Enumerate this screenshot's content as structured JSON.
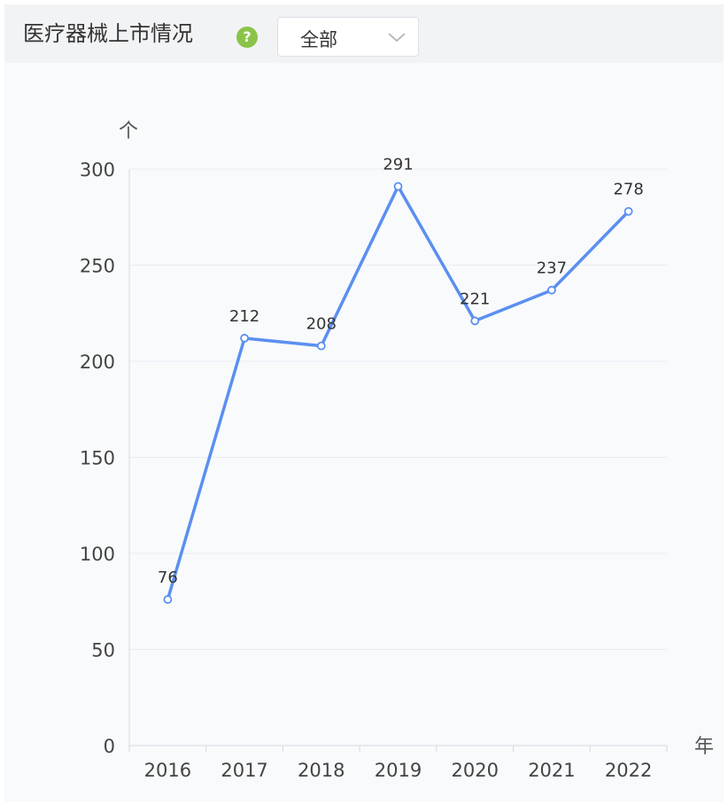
{
  "header": {
    "title": "医疗器械上市情况",
    "help_icon": "question-circle-icon",
    "help_glyph": "?",
    "select": {
      "value": "全部",
      "icon": "chevron-down-icon"
    }
  },
  "colors": {
    "line": "#5b8ff0",
    "help_icon": "#8bc34a",
    "grid": "#e8edf3",
    "axis_text": "#444444",
    "label_text": "#333333",
    "header_bg": "#f2f3f5",
    "chart_bg": "#f8fafc"
  },
  "chart_data": {
    "type": "line",
    "title": "",
    "xlabel": "年",
    "ylabel": "个",
    "categories": [
      "2016",
      "2017",
      "2018",
      "2019",
      "2020",
      "2021",
      "2022"
    ],
    "series": [
      {
        "values": [
          76,
          212,
          208,
          291,
          221,
          237,
          278
        ]
      }
    ],
    "ylim": [
      0,
      300
    ],
    "yticks": [
      0,
      50,
      100,
      150,
      200,
      250,
      300
    ],
    "grid": true,
    "data_labels": true,
    "legend": "none"
  }
}
